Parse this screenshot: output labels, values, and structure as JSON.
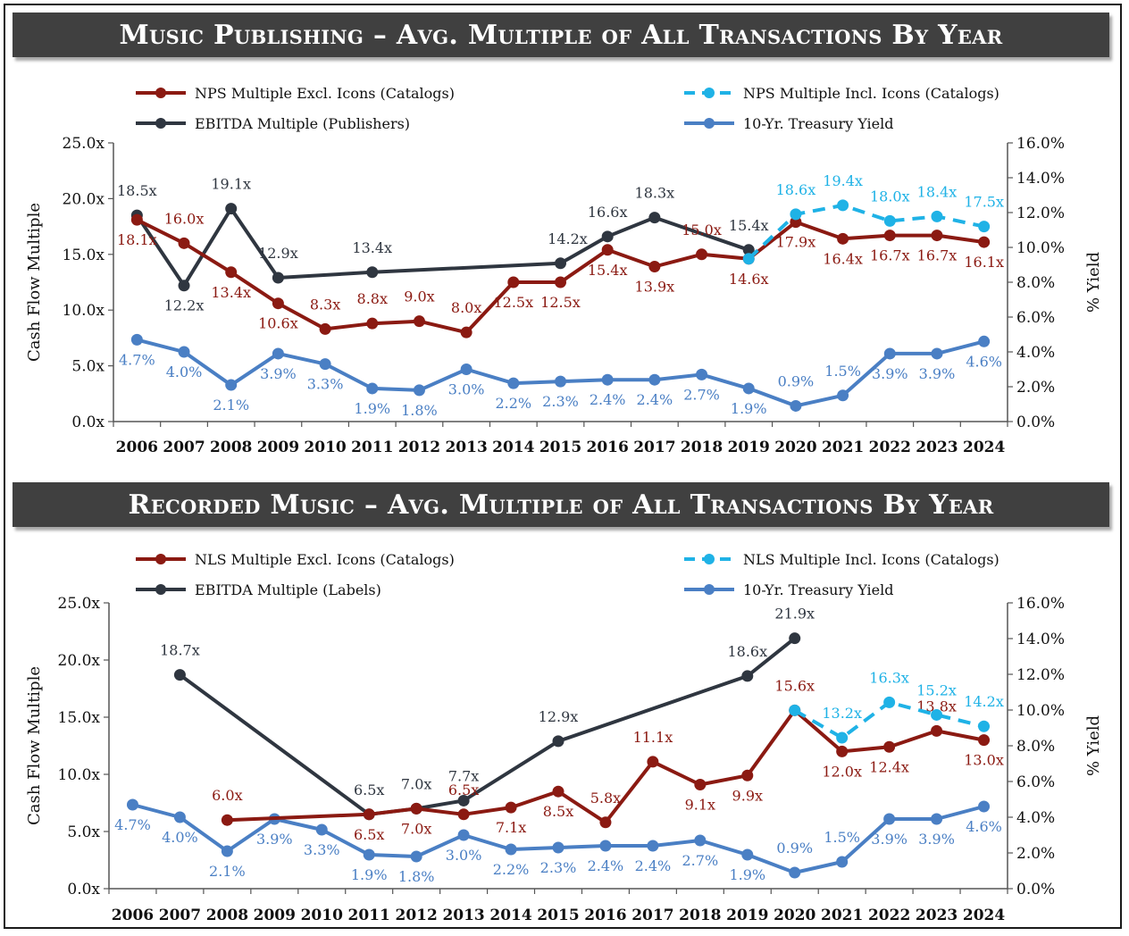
{
  "charts": [
    {
      "banner_title": "Music Publishing – Avg. Multiple of All Transactions By Year",
      "y_left_label": "Cash Flow Multiple",
      "y_right_label": "% Yield",
      "y_left_ticks": [
        "0.0x",
        "5.0x",
        "10.0x",
        "15.0x",
        "20.0x",
        "25.0x"
      ],
      "y_right_ticks": [
        "0.0%",
        "2.0%",
        "4.0%",
        "6.0%",
        "8.0%",
        "10.0%",
        "12.0%",
        "14.0%",
        "16.0%"
      ],
      "legend": {
        "excl": "NPS Multiple Excl. Icons (Catalogs)",
        "incl": "NPS Multiple Incl. Icons (Catalogs)",
        "ebitda": "EBITDA Multiple (Publishers)",
        "treasury": "10-Yr. Treasury Yield"
      }
    },
    {
      "banner_title": "Recorded Music – Avg. Multiple of All Transactions By Year",
      "y_left_label": "Cash Flow Multiple",
      "y_right_label": "% Yield",
      "y_left_ticks": [
        "0.0x",
        "5.0x",
        "10.0x",
        "15.0x",
        "20.0x",
        "25.0x"
      ],
      "y_right_ticks": [
        "0.0%",
        "2.0%",
        "4.0%",
        "6.0%",
        "8.0%",
        "10.0%",
        "12.0%",
        "14.0%",
        "16.0%"
      ],
      "legend": {
        "excl": "NLS Multiple Excl. Icons (Catalogs)",
        "incl": "NLS Multiple Incl. Icons (Catalogs)",
        "ebitda": "EBITDA Multiple (Labels)",
        "treasury": "10-Yr. Treasury Yield"
      }
    }
  ],
  "colors": {
    "excl": "#8b1a12",
    "incl": "#1fb2e6",
    "ebitda": "#2f3640",
    "treasury": "#4a7fc4",
    "axis": "#555555",
    "banner": "#404040"
  },
  "chart_data": [
    {
      "type": "line",
      "title": "Music Publishing – Avg. Multiple of All Transactions By Year",
      "x": [
        "2006",
        "2007",
        "2008",
        "2009",
        "2010",
        "2011",
        "2012",
        "2013",
        "2014",
        "2015",
        "2016",
        "2017",
        "2018",
        "2019",
        "2020",
        "2021",
        "2022",
        "2023",
        "2024"
      ],
      "ylabel": "Cash Flow Multiple",
      "y2label": "% Yield",
      "ylim": [
        0,
        25
      ],
      "y2lim": [
        0,
        16
      ],
      "series": [
        {
          "key": "excl",
          "name": "NPS Multiple Excl. Icons (Catalogs)",
          "axis": "left",
          "values": [
            18.1,
            16.0,
            13.4,
            10.6,
            8.3,
            8.8,
            9.0,
            8.0,
            12.5,
            12.5,
            15.4,
            13.9,
            15.0,
            14.6,
            17.9,
            16.4,
            16.7,
            16.7,
            16.1
          ],
          "labels": [
            "18.1x",
            "16.0x",
            "13.4x",
            "10.6x",
            "8.3x",
            "8.8x",
            "9.0x",
            "8.0x",
            "12.5x",
            "12.5x",
            "15.4x",
            "13.9x",
            "15.0x",
            "14.6x",
            "17.9x",
            "16.4x",
            "16.7x",
            "16.7x",
            "16.1x"
          ]
        },
        {
          "key": "incl",
          "name": "NPS Multiple Incl. Icons (Catalogs)",
          "axis": "left",
          "dashed": true,
          "values": [
            null,
            null,
            null,
            null,
            null,
            null,
            null,
            null,
            null,
            null,
            null,
            null,
            null,
            14.6,
            18.6,
            19.4,
            18.0,
            18.4,
            17.5
          ],
          "labels": [
            null,
            null,
            null,
            null,
            null,
            null,
            null,
            null,
            null,
            null,
            null,
            null,
            null,
            null,
            "18.6x",
            "19.4x",
            "18.0x",
            "18.4x",
            "17.5x"
          ]
        },
        {
          "key": "ebitda",
          "name": "EBITDA Multiple (Publishers)",
          "axis": "left",
          "values": [
            18.5,
            12.2,
            19.1,
            12.9,
            null,
            13.4,
            null,
            null,
            null,
            14.2,
            16.6,
            18.3,
            null,
            15.4,
            null,
            null,
            null,
            null,
            null
          ],
          "labels": [
            "18.5x",
            "12.2x",
            "19.1x",
            "12.9x",
            null,
            "13.4x",
            null,
            null,
            null,
            "14.2x",
            "16.6x",
            "18.3x",
            null,
            "15.4x",
            null,
            null,
            null,
            null,
            null
          ]
        },
        {
          "key": "treasury",
          "name": "10-Yr. Treasury Yield",
          "axis": "right",
          "values": [
            4.7,
            4.0,
            2.1,
            3.9,
            3.3,
            1.9,
            1.8,
            3.0,
            2.2,
            2.3,
            2.4,
            2.4,
            2.7,
            1.9,
            0.9,
            1.5,
            3.9,
            3.9,
            4.6
          ],
          "labels": [
            "4.7%",
            "4.0%",
            "2.1%",
            "3.9%",
            "3.3%",
            "1.9%",
            "1.8%",
            "3.0%",
            "2.2%",
            "2.3%",
            "2.4%",
            "2.4%",
            "2.7%",
            "1.9%",
            "0.9%",
            "1.5%",
            "3.9%",
            "3.9%",
            "4.6%"
          ]
        }
      ]
    },
    {
      "type": "line",
      "title": "Recorded Music – Avg. Multiple of All Transactions By Year",
      "x": [
        "2006",
        "2007",
        "2008",
        "2009",
        "2010",
        "2011",
        "2012",
        "2013",
        "2014",
        "2015",
        "2016",
        "2017",
        "2018",
        "2019",
        "2020",
        "2021",
        "2022",
        "2023",
        "2024"
      ],
      "ylabel": "Cash Flow Multiple",
      "y2label": "% Yield",
      "ylim": [
        0,
        25
      ],
      "y2lim": [
        0,
        16
      ],
      "series": [
        {
          "key": "excl",
          "name": "NLS Multiple Excl. Icons (Catalogs)",
          "axis": "left",
          "values": [
            null,
            null,
            6.0,
            null,
            null,
            6.5,
            7.0,
            6.5,
            7.1,
            8.5,
            5.8,
            11.1,
            9.1,
            9.9,
            15.6,
            12.0,
            12.4,
            13.8,
            13.0
          ],
          "labels": [
            null,
            null,
            "6.0x",
            null,
            null,
            "6.5x",
            "7.0x",
            "6.5x",
            "7.1x",
            "8.5x",
            "5.8x",
            "11.1x",
            "9.1x",
            "9.9x",
            "15.6x",
            "12.0x",
            "12.4x",
            "13.8x",
            "13.0x"
          ]
        },
        {
          "key": "incl",
          "name": "NLS Multiple Incl. Icons (Catalogs)",
          "axis": "left",
          "dashed": true,
          "values": [
            null,
            null,
            null,
            null,
            null,
            null,
            null,
            null,
            null,
            null,
            null,
            null,
            null,
            null,
            15.6,
            13.2,
            16.3,
            15.2,
            14.2
          ],
          "labels": [
            null,
            null,
            null,
            null,
            null,
            null,
            null,
            null,
            null,
            null,
            null,
            null,
            null,
            null,
            null,
            "13.2x",
            "16.3x",
            "15.2x",
            "14.2x"
          ]
        },
        {
          "key": "ebitda",
          "name": "EBITDA Multiple (Labels)",
          "axis": "left",
          "values": [
            null,
            18.7,
            null,
            null,
            null,
            6.5,
            7.0,
            7.7,
            null,
            12.9,
            null,
            null,
            null,
            18.6,
            21.9,
            null,
            null,
            null,
            null
          ],
          "labels": [
            null,
            "18.7x",
            null,
            null,
            null,
            "6.5x",
            "7.0x",
            "7.7x",
            null,
            "12.9x",
            null,
            null,
            null,
            "18.6x",
            "21.9x",
            null,
            null,
            null,
            null
          ]
        },
        {
          "key": "treasury",
          "name": "10-Yr. Treasury Yield",
          "axis": "right",
          "values": [
            4.7,
            4.0,
            2.1,
            3.9,
            3.3,
            1.9,
            1.8,
            3.0,
            2.2,
            2.3,
            2.4,
            2.4,
            2.7,
            1.9,
            0.9,
            1.5,
            3.9,
            3.9,
            4.6
          ],
          "labels": [
            "4.7%",
            "4.0%",
            "2.1%",
            "3.9%",
            "3.3%",
            "1.9%",
            "1.8%",
            "3.0%",
            "2.2%",
            "2.3%",
            "2.4%",
            "2.4%",
            "2.7%",
            "1.9%",
            "0.9%",
            "1.5%",
            "3.9%",
            "3.9%",
            "4.6%"
          ]
        }
      ]
    }
  ]
}
